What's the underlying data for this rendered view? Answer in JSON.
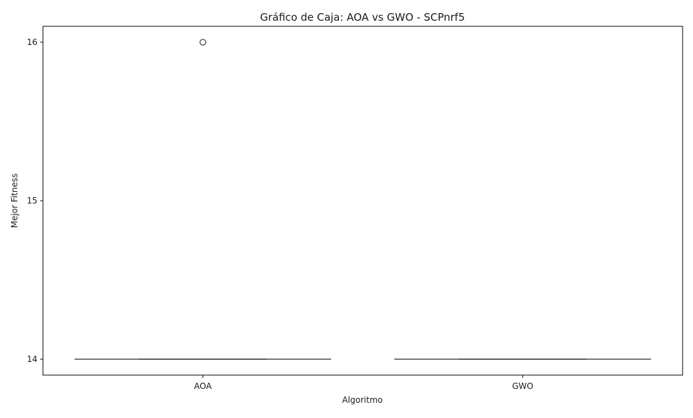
{
  "chart_data": {
    "type": "box",
    "title": "Gráfico de Caja: AOA vs GWO - SCPnrf5",
    "xlabel": "Algoritmo",
    "ylabel": "Mejor Fitness",
    "categories": [
      "AOA",
      "GWO"
    ],
    "ylim": [
      13.9,
      16.1
    ],
    "yticks": [
      14,
      15,
      16
    ],
    "boxes": [
      {
        "category": "AOA",
        "min": 14,
        "q1": 14,
        "median": 14,
        "q3": 14,
        "max": 14,
        "outliers": [
          16
        ]
      },
      {
        "category": "GWO",
        "min": 14,
        "q1": 14,
        "median": 14,
        "q3": 14,
        "max": 14,
        "outliers": []
      }
    ],
    "grid": false,
    "colors": {
      "box_line": "#3f3f3f",
      "axis": "#000000"
    }
  }
}
